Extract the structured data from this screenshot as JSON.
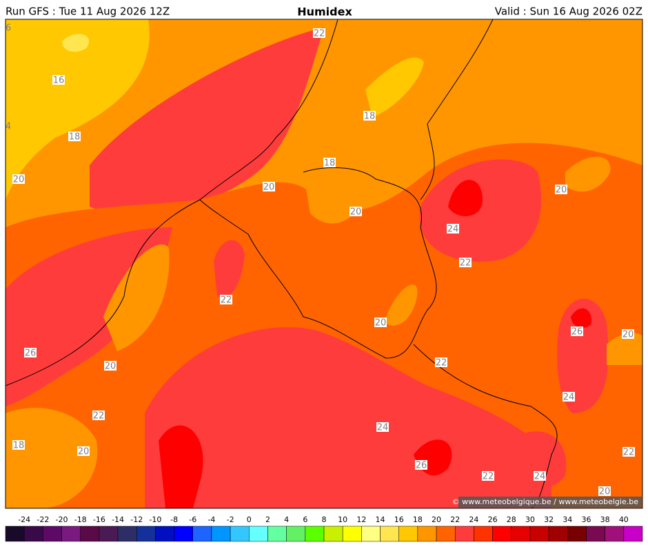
{
  "header": {
    "run": "Run GFS : Tue 11 Aug 2026 12Z",
    "title": "Humidex",
    "valid": "Valid : Sun 16 Aug 2026 02Z"
  },
  "contour_labels": [
    6,
    22,
    16,
    4,
    18,
    18,
    18,
    20,
    20,
    20,
    20,
    24,
    22,
    22,
    20,
    26,
    20,
    26,
    20,
    22,
    24,
    22,
    24,
    18,
    20,
    26,
    22,
    22,
    24,
    20
  ],
  "copyright": "© www.meteobelgique.be / www.meteobelgie.be",
  "colorbar": {
    "ticks": [
      -24,
      -22,
      -20,
      -18,
      -16,
      -14,
      -12,
      -10,
      -8,
      -6,
      -4,
      -2,
      0,
      2,
      4,
      6,
      8,
      10,
      12,
      14,
      16,
      18,
      20,
      22,
      24,
      26,
      28,
      30,
      32,
      34,
      36,
      38,
      40
    ],
    "colors": [
      "#1a0a2a",
      "#3a0a48",
      "#5c0a66",
      "#7a1a80",
      "#5a0a46",
      "#4a1a54",
      "#2e2e66",
      "#14309a",
      "#0010c0",
      "#0000ff",
      "#1e64ff",
      "#0096ff",
      "#32c8ff",
      "#64ffff",
      "#64ffa0",
      "#64f064",
      "#5aff00",
      "#c8f000",
      "#ffff00",
      "#ffff82",
      "#ffe650",
      "#ffc800",
      "#ff9600",
      "#ff6400",
      "#ff3c3c",
      "#ff3200",
      "#ff0000",
      "#e60000",
      "#c80000",
      "#a00000",
      "#780000",
      "#7a0a50",
      "#a0107a",
      "#c800c8"
    ]
  }
}
